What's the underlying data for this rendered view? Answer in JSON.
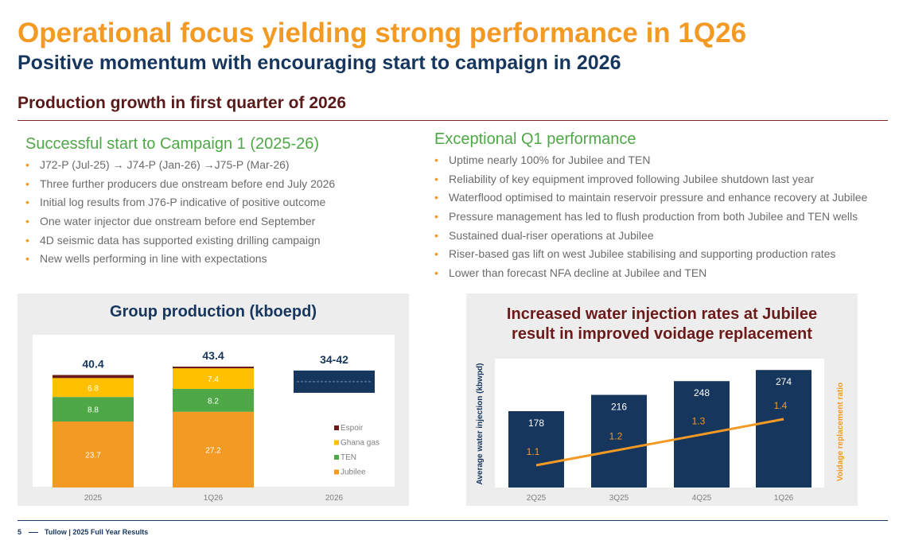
{
  "header": {
    "title": "Operational focus yielding strong performance in 1Q26",
    "subtitle": "Positive momentum with encouraging start to campaign in 2026",
    "section_title": "Production growth in first quarter of 2026"
  },
  "left_column": {
    "heading": "Successful start to Campaign 1 (2025-26)",
    "bullets": [
      "J72-P (Jul-25) → J74-P (Jan-26) →J75-P (Mar-26)",
      "Three further producers due onstream before end July 2026",
      "Initial log results from J76-P indicative of positive outcome",
      "One water injector due onstream before end September",
      "4D seismic data has supported existing drilling campaign",
      "New wells performing in line with expectations"
    ]
  },
  "right_column": {
    "heading": "Exceptional Q1 performance",
    "bullets": [
      "Uptime nearly 100% for Jubilee and TEN",
      "Reliability of key equipment improved following Jubilee shutdown last year",
      "Waterflood optimised to maintain reservoir pressure and enhance recovery at Jubilee",
      "Pressure management has led to flush production from both Jubilee and TEN wells",
      "Sustained dual-riser operations at Jubilee",
      "Riser-based gas lift on west Jubilee stabilising and supporting production rates",
      "Lower than forecast NFA decline at Jubilee and TEN"
    ]
  },
  "colors": {
    "orange": "#f39a24",
    "navy": "#17365d",
    "green": "#4ea847",
    "gold": "#ffc000",
    "maroon": "#6b1a1a",
    "grey_text": "#6b6b6b",
    "panel_bg": "#ededed"
  },
  "chart_data": [
    {
      "type": "bar",
      "stacked": true,
      "title": "Group production (kboepd)",
      "categories": [
        "2025",
        "1Q26",
        "2026"
      ],
      "series": [
        {
          "name": "Jubilee",
          "color": "#f39a24",
          "values": [
            23.7,
            27.2,
            null
          ],
          "labels": [
            "23.7",
            "27.2",
            ""
          ]
        },
        {
          "name": "TEN",
          "color": "#4ea847",
          "values": [
            8.8,
            8.2,
            null
          ],
          "labels": [
            "8.8",
            "8.2",
            ""
          ]
        },
        {
          "name": "Ghana gas",
          "color": "#ffc000",
          "values": [
            6.8,
            7.4,
            null
          ],
          "labels": [
            "6.8",
            "7.4",
            ""
          ]
        },
        {
          "name": "Espoir",
          "color": "#6b1a1a",
          "values": [
            1.1,
            0.6,
            null
          ],
          "labels": [
            "",
            "",
            ""
          ]
        }
      ],
      "totals": [
        "40.4",
        "43.4",
        "34-42"
      ],
      "guidance": {
        "category": "2026",
        "low": 34,
        "high": 42,
        "label": "34-42"
      },
      "legend_order": [
        "Espoir",
        "Ghana gas",
        "TEN",
        "Jubilee"
      ],
      "ylim": [
        0,
        50
      ]
    },
    {
      "type": "bar+line",
      "title_line1": "Increased water injection rates at Jubilee",
      "title_line2": "result in improved voidage replacement",
      "categories": [
        "2Q25",
        "3Q25",
        "4Q25",
        "1Q26"
      ],
      "bars": {
        "name": "Average water injection (kbwpd)",
        "color": "#17365d",
        "values": [
          178,
          216,
          248,
          274
        ],
        "labels": [
          "178",
          "216",
          "248",
          "274"
        ]
      },
      "line": {
        "name": "Voidage replacement ratio",
        "color": "#f39a24",
        "values": [
          1.1,
          1.2,
          1.3,
          1.4
        ],
        "labels": [
          "1.1",
          "1.2",
          "1.3",
          "1.4"
        ]
      },
      "ylabel_left": "Average water injection (kbwpd)",
      "ylabel_right": "Voidage replacement ratio",
      "ylim_left": [
        0,
        300
      ],
      "ylim_right": [
        0.8,
        1.6
      ]
    }
  ],
  "footer": {
    "page_number": "5",
    "text": "Tullow | 2025 Full Year Results"
  }
}
